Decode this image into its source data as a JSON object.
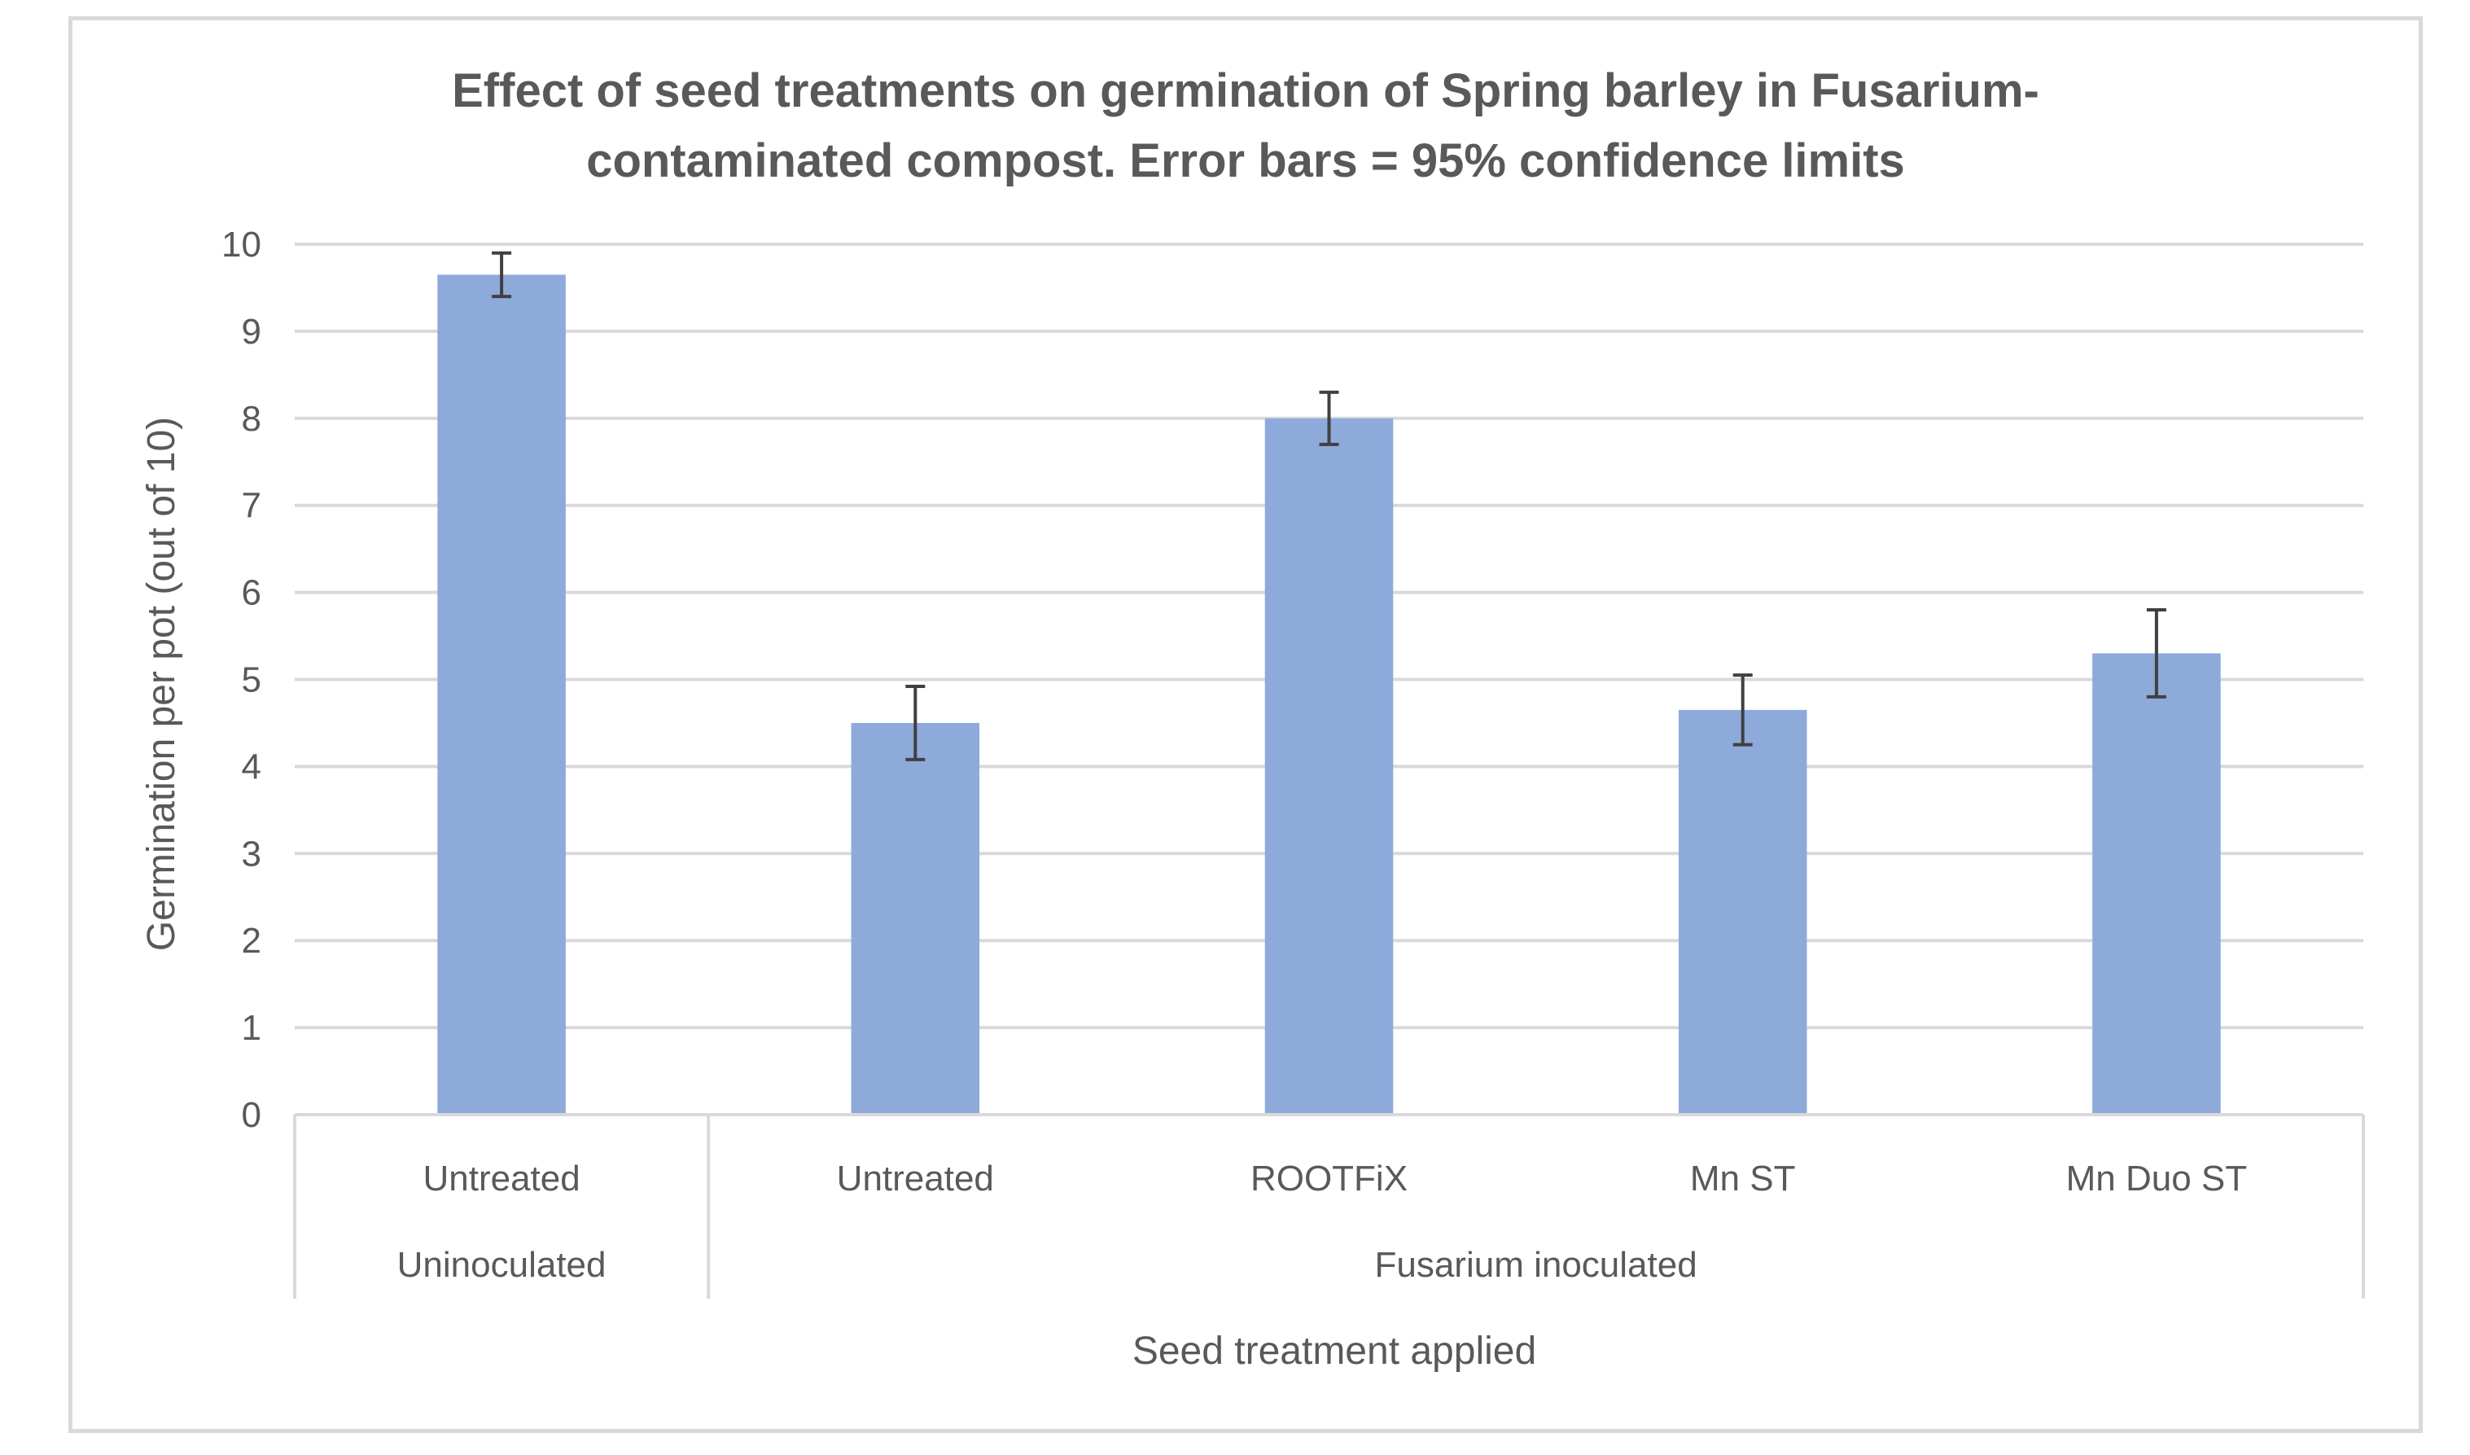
{
  "chart_data": {
    "type": "bar",
    "title_lines": [
      "Effect of seed treatments on germination of Spring barley in Fusarium-",
      "contaminated compost.  Error bars = 95% confidence limits"
    ],
    "ylabel": "Germination per pot (out of 10)",
    "xlabel": "Seed treatment applied",
    "ylim": [
      0,
      10
    ],
    "yticks": [
      "0",
      "1",
      "2",
      "3",
      "4",
      "5",
      "6",
      "7",
      "8",
      "9",
      "10"
    ],
    "grid": true,
    "categories": [
      "Untreated",
      "Untreated",
      "ROOTFiX",
      "Mn ST",
      "Mn Duo ST"
    ],
    "groups": [
      {
        "label": "Uninoculated",
        "count": 1
      },
      {
        "label": "Fusarium inoculated",
        "count": 4
      }
    ],
    "values": [
      9.65,
      4.5,
      8.0,
      4.65,
      5.3
    ],
    "error_bars": [
      0.25,
      0.42,
      0.3,
      0.4,
      0.5
    ],
    "bar_color": "#8eaadb",
    "grid_color": "#d9d9d9",
    "errorbar_color": "#404040"
  }
}
